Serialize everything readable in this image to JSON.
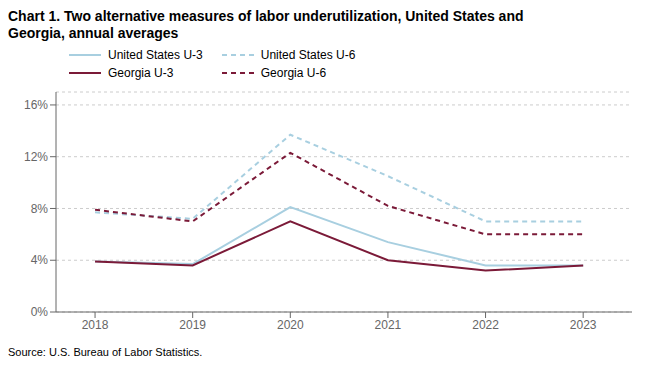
{
  "chart_data": {
    "type": "line",
    "title": "Chart 1. Two alternative measures of labor underutilization, United States and",
    "subtitle": "Georgia, annual averages",
    "annotations": [
      "Source: U.S. Bureau of Labor Statistics."
    ],
    "x": [
      2018,
      2019,
      2020,
      2021,
      2022,
      2023
    ],
    "xlim": [
      2017.6,
      2023.5
    ],
    "xticks": [
      2018,
      2019,
      2020,
      2021,
      2022,
      2023
    ],
    "ylim": [
      0,
      17
    ],
    "yticks": [
      {
        "value": 0,
        "label": "0%"
      },
      {
        "value": 4,
        "label": "4%"
      },
      {
        "value": 8,
        "label": "8%"
      },
      {
        "value": 12,
        "label": "12%"
      },
      {
        "value": 16,
        "label": "16%"
      }
    ],
    "grid": true,
    "legend": "top",
    "series": [
      {
        "name": "United States U-3",
        "color": "#a8cfe0",
        "line_style": "solid",
        "values": [
          3.9,
          3.7,
          8.1,
          5.4,
          3.6,
          3.6
        ]
      },
      {
        "name": "United States U-6",
        "color": "#a8cfe0",
        "line_style": "dashed",
        "values": [
          7.7,
          7.2,
          13.7,
          10.5,
          7.0,
          7.0
        ]
      },
      {
        "name": "Georgia U-3",
        "color": "#7b1a38",
        "line_style": "solid",
        "values": [
          3.9,
          3.6,
          7.0,
          4.0,
          3.2,
          3.6
        ]
      },
      {
        "name": "Georgia U-6",
        "color": "#7b1a38",
        "line_style": "dashed",
        "values": [
          7.9,
          7.0,
          12.3,
          8.2,
          6.0,
          6.0
        ]
      }
    ]
  }
}
